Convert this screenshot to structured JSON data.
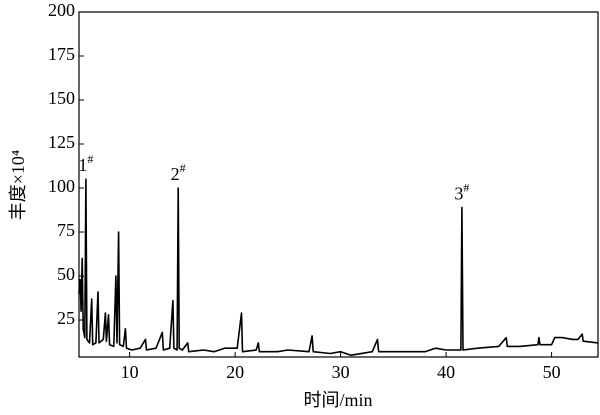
{
  "chart_data": {
    "type": "line",
    "x_label": "时间/min",
    "y_label": "丰度×10⁴",
    "color": "#000000",
    "xlim": [
      5.2,
      54.4
    ],
    "ylim": [
      4,
      200
    ],
    "xticks": [
      10,
      20,
      30,
      40,
      50
    ],
    "yticks": [
      25,
      50,
      75,
      100,
      125,
      150,
      175,
      200
    ],
    "annotations": [
      {
        "text": "1",
        "sup": "#",
        "x": 5.85
      },
      {
        "text": "2",
        "sup": "#",
        "x": 14.6
      },
      {
        "text": "3",
        "sup": "#",
        "x": 41.5
      }
    ],
    "x": [
      5.2,
      5.3,
      5.4,
      5.5,
      5.6,
      5.75,
      5.85,
      5.95,
      6.2,
      6.4,
      6.5,
      6.8,
      7.0,
      7.1,
      7.5,
      7.7,
      7.8,
      8.0,
      8.1,
      8.5,
      8.7,
      8.8,
      8.95,
      9.05,
      9.4,
      9.6,
      9.7,
      10.2,
      11.0,
      11.5,
      11.6,
      12.5,
      13.1,
      13.2,
      13.8,
      14.1,
      14.2,
      14.5,
      14.6,
      14.7,
      15.0,
      15.5,
      15.6,
      17,
      18,
      19,
      20.2,
      20.6,
      20.7,
      22,
      22.2,
      22.3,
      24,
      25,
      27,
      27.3,
      27.4,
      29,
      30,
      31,
      33,
      33.5,
      33.6,
      35,
      38,
      39,
      40,
      41.4,
      41.5,
      41.6,
      43,
      45,
      45.7,
      45.8,
      47,
      48.7,
      48.8,
      48.9,
      50,
      50.3,
      51,
      52,
      52.5,
      52.9,
      53,
      54.4
    ],
    "values": [
      40,
      48,
      30,
      60,
      20,
      15,
      105,
      14,
      12,
      37,
      11,
      12,
      41,
      12,
      14,
      29,
      13,
      28,
      11,
      10,
      50,
      12,
      75,
      11,
      10,
      20,
      9,
      8,
      9,
      14,
      8,
      9,
      18,
      8,
      9,
      36,
      9,
      8,
      100,
      9,
      8,
      12,
      7,
      8,
      7,
      9,
      9,
      29,
      7,
      8,
      12,
      7,
      7,
      8,
      7,
      16,
      7,
      6,
      7,
      5,
      7,
      14,
      7,
      7,
      7,
      9,
      8,
      8,
      89,
      8,
      9,
      10,
      15,
      10,
      10,
      11,
      15,
      11,
      11,
      15,
      15,
      14,
      14,
      17,
      13,
      12
    ]
  }
}
